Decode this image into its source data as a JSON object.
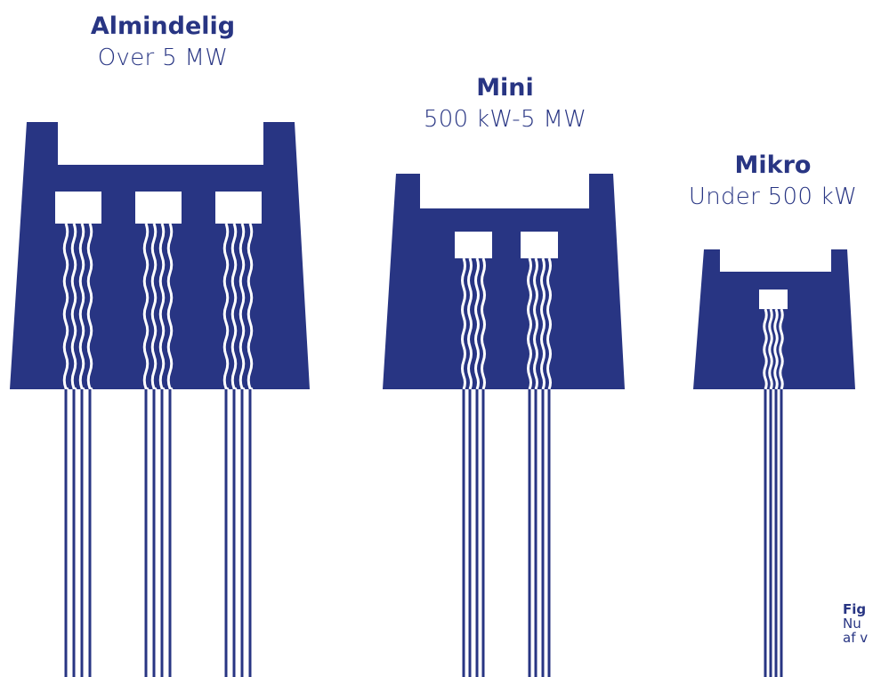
{
  "colors": {
    "primary": "#283583",
    "background": "#ffffff",
    "stripe": "#ffffff"
  },
  "plants": [
    {
      "id": "almindelig",
      "title": "Almindelig",
      "range": "Over 5 MW",
      "turbines": 3
    },
    {
      "id": "mini",
      "title": "Mini",
      "range": "500 kW-5 MW",
      "turbines": 2
    },
    {
      "id": "mikro",
      "title": "Mikro",
      "range": "Under 500 kW",
      "turbines": 1
    }
  ],
  "caption": {
    "bold": "Fig",
    "line1": "Nu",
    "line2": "af v"
  }
}
